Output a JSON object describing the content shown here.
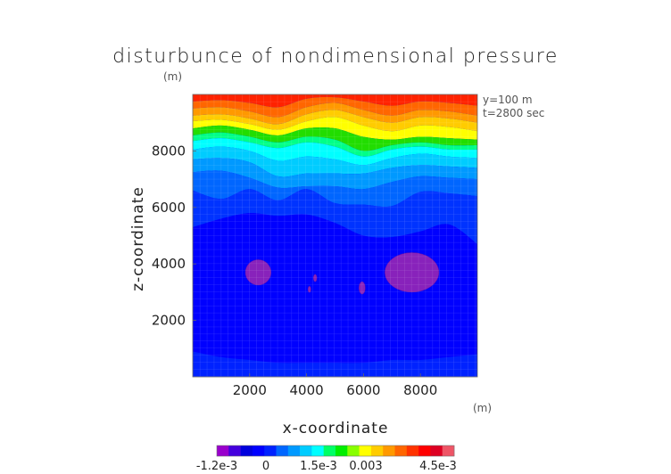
{
  "chart_data": {
    "type": "heatmap",
    "title": "disturbunce of nondimensional pressure",
    "xlabel": "x-coordinate",
    "ylabel": "z-coordinate",
    "x_unit": "(m)",
    "z_unit": "(m)",
    "annotations": [
      "y=100 m",
      "t=2800 sec"
    ],
    "xlim": [
      0,
      10000
    ],
    "ylim": [
      0,
      10000
    ],
    "xticks": [
      "2000",
      "4000",
      "6000",
      "8000"
    ],
    "yticks": [
      "2000",
      "4000",
      "6000",
      "8000"
    ],
    "grid": true,
    "colorbar": {
      "min": -0.0012,
      "max": 0.0045,
      "tick_labels": [
        "-1.2e-3",
        "0",
        "1.5e-3",
        "0.003",
        "4.5e-3"
      ],
      "colors": [
        "#9900cc",
        "#4400dd",
        "#0000dd",
        "#0000ff",
        "#0022ff",
        "#0066ff",
        "#0099ff",
        "#00ccff",
        "#00ffff",
        "#00ff66",
        "#00ee00",
        "#88ff00",
        "#ffff00",
        "#ffcc00",
        "#ff9900",
        "#ff6600",
        "#ff3300",
        "#ff0000",
        "#dd0022",
        "#ee5566"
      ]
    },
    "contour_bands": [
      {
        "name": "band-red-dark",
        "color": "#ff2200",
        "z_top": [
          10000,
          10000,
          10000,
          10000,
          10000,
          10000,
          10000,
          10000,
          10000,
          10000,
          10000
        ],
        "z_bottom": [
          9750,
          9800,
          9700,
          9550,
          9850,
          9900,
          9750,
          9600,
          9750,
          9700,
          9600
        ]
      },
      {
        "name": "band-orange-red",
        "color": "#ff6600",
        "z_top": [
          9750,
          9800,
          9700,
          9550,
          9850,
          9900,
          9750,
          9600,
          9750,
          9700,
          9600
        ],
        "z_bottom": [
          9500,
          9550,
          9400,
          9200,
          9550,
          9700,
          9450,
          9250,
          9450,
          9400,
          9250
        ]
      },
      {
        "name": "band-orange",
        "color": "#ff9900",
        "z_top": [
          9500,
          9550,
          9400,
          9200,
          9550,
          9700,
          9450,
          9250,
          9450,
          9400,
          9250
        ],
        "z_bottom": [
          9250,
          9300,
          9150,
          8950,
          9300,
          9450,
          9200,
          9000,
          9200,
          9150,
          9000
        ]
      },
      {
        "name": "band-yellow-orange",
        "color": "#ffcc00",
        "z_top": [
          9250,
          9300,
          9150,
          8950,
          9300,
          9450,
          9200,
          9000,
          9200,
          9150,
          9000
        ],
        "z_bottom": [
          9050,
          9100,
          8950,
          8750,
          9050,
          9200,
          8900,
          8700,
          8900,
          8850,
          8700
        ]
      },
      {
        "name": "band-yellow",
        "color": "#ffff00",
        "z_top": [
          9050,
          9100,
          8950,
          8750,
          9050,
          9200,
          8900,
          8700,
          8900,
          8850,
          8700
        ],
        "z_bottom": [
          8800,
          8900,
          8750,
          8550,
          8800,
          8800,
          8500,
          8400,
          8500,
          8450,
          8400
        ]
      },
      {
        "name": "band-green",
        "color": "#22dd00",
        "z_top": [
          8800,
          8900,
          8750,
          8550,
          8800,
          8800,
          8500,
          8400,
          8500,
          8450,
          8400
        ],
        "z_bottom": [
          8550,
          8650,
          8500,
          8300,
          8500,
          8400,
          8000,
          8200,
          8300,
          8200,
          8200
        ]
      },
      {
        "name": "band-cyan-green",
        "color": "#00ff88",
        "z_top": [
          8550,
          8650,
          8500,
          8300,
          8500,
          8400,
          8000,
          8200,
          8300,
          8200,
          8200
        ],
        "z_bottom": [
          8350,
          8450,
          8300,
          8100,
          8300,
          8150,
          7800,
          8050,
          8150,
          8050,
          8050
        ]
      },
      {
        "name": "band-cyan",
        "color": "#00ffff",
        "z_top": [
          8350,
          8450,
          8300,
          8100,
          8300,
          8150,
          7800,
          8050,
          8150,
          8050,
          8050
        ],
        "z_bottom": [
          8050,
          8150,
          8000,
          7650,
          7800,
          7700,
          7500,
          7750,
          7900,
          7800,
          7750
        ]
      },
      {
        "name": "band-sky",
        "color": "#00ccff",
        "z_top": [
          8050,
          8150,
          8000,
          7650,
          7800,
          7700,
          7500,
          7750,
          7900,
          7800,
          7750
        ],
        "z_bottom": [
          7700,
          7750,
          7600,
          7100,
          7200,
          7200,
          7200,
          7400,
          7500,
          7450,
          7400
        ]
      },
      {
        "name": "band-light-blue",
        "color": "#0099ff",
        "z_top": [
          7700,
          7750,
          7600,
          7100,
          7200,
          7200,
          7200,
          7400,
          7500,
          7450,
          7400
        ],
        "z_bottom": [
          7250,
          7300,
          7050,
          6700,
          6750,
          6750,
          6650,
          6900,
          7100,
          7050,
          7000
        ]
      },
      {
        "name": "band-mid-blue",
        "color": "#0066ff",
        "z_top": [
          7250,
          7300,
          7050,
          6700,
          6750,
          6750,
          6650,
          6900,
          7100,
          7050,
          7000
        ],
        "z_bottom": [
          6600,
          6300,
          6650,
          6250,
          6650,
          6150,
          6100,
          6050,
          6550,
          6500,
          6400
        ]
      },
      {
        "name": "band-blue",
        "color": "#0033ff",
        "z_top": [
          6600,
          6300,
          6650,
          6250,
          6650,
          6150,
          6100,
          6050,
          6550,
          6500,
          6400
        ],
        "z_bottom": [
          5300,
          5600,
          5800,
          5700,
          5750,
          5450,
          5000,
          4950,
          5150,
          5400,
          4700
        ]
      },
      {
        "name": "band-deep-blue",
        "color": "#0000ff",
        "z_top": [
          5300,
          5600,
          5800,
          5700,
          5750,
          5450,
          5000,
          4950,
          5150,
          5400,
          4700
        ],
        "z_bottom": [
          900,
          700,
          600,
          500,
          500,
          500,
          500,
          600,
          600,
          700,
          800
        ]
      },
      {
        "name": "band-bottom-blue",
        "color": "#0022ff",
        "z_top": [
          900,
          700,
          600,
          500,
          500,
          500,
          500,
          600,
          600,
          700,
          800
        ],
        "z_bottom": [
          0,
          0,
          0,
          0,
          0,
          0,
          0,
          0,
          0,
          0,
          0
        ]
      }
    ],
    "contour_x": [
      0,
      1000,
      2000,
      3000,
      4000,
      5000,
      6000,
      7000,
      8000,
      9000,
      10000
    ],
    "minima": [
      {
        "name": "purple-cell-left",
        "x": 2300,
        "z": 3700,
        "rx": 450,
        "rz": 450
      },
      {
        "name": "purple-cell-right",
        "x": 7700,
        "z": 3700,
        "rx": 950,
        "rz": 700
      },
      {
        "name": "purple-dot-1",
        "x": 4300,
        "z": 3500,
        "rx": 60,
        "rz": 130
      },
      {
        "name": "purple-dot-2",
        "x": 4100,
        "z": 3100,
        "rx": 50,
        "rz": 110
      },
      {
        "name": "purple-dot-3",
        "x": 5950,
        "z": 3150,
        "rx": 110,
        "rz": 220
      }
    ]
  }
}
